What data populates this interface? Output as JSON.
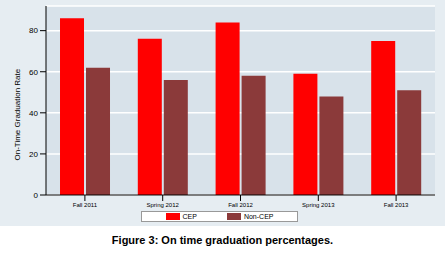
{
  "chart_data": {
    "type": "bar",
    "caption": "Figure 3: On time graduation percentages.",
    "y_label": "On-Time Graduation Rate",
    "categories": [
      "Fall 2011",
      "Spring 2012",
      "Fall 2012",
      "Spring 2013",
      "Fall 2013"
    ],
    "series": [
      {
        "name": "CEP",
        "color": "#ff0000",
        "values": [
          86,
          76,
          84,
          59,
          75
        ]
      },
      {
        "name": "Non-CEP",
        "color": "#8b3a3a",
        "values": [
          62,
          56,
          58,
          48,
          51
        ]
      }
    ],
    "ylim": [
      0,
      92
    ],
    "yticks": [
      0,
      20,
      40,
      60,
      80
    ],
    "grid": true,
    "legend": "bottom"
  }
}
